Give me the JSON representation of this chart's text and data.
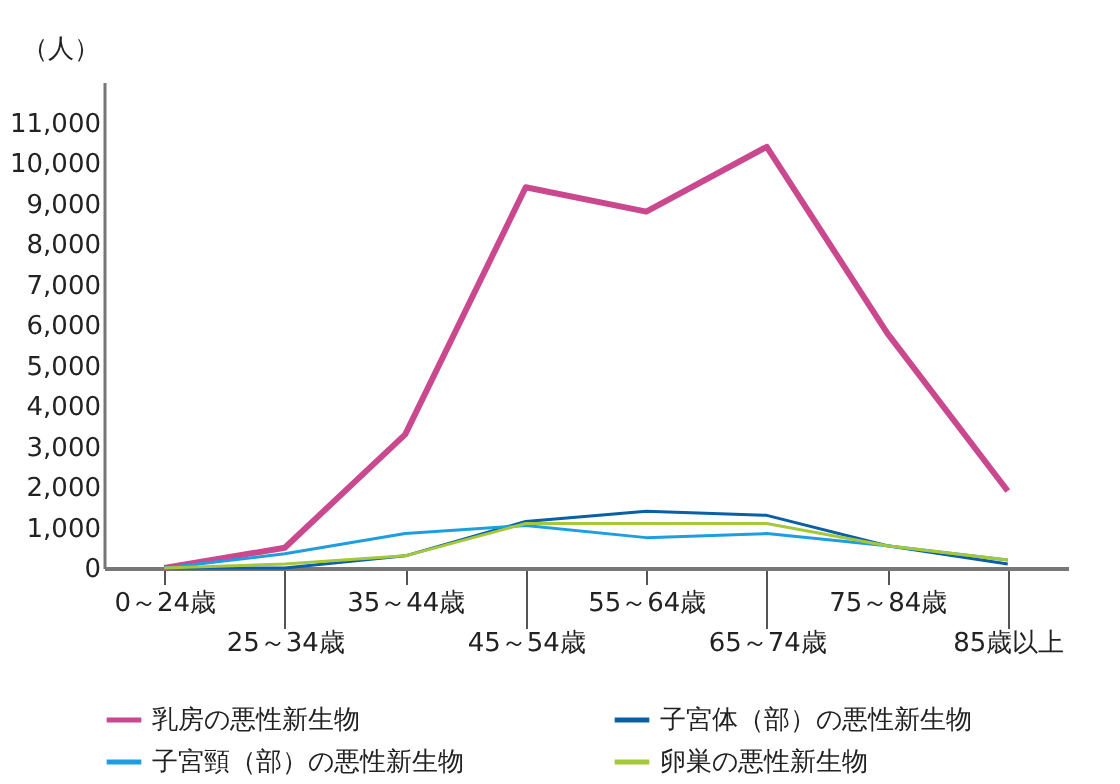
{
  "chart_data": {
    "type": "line",
    "ylabel": "（人）",
    "categories": [
      "0～24歳",
      "25～34歳",
      "35～44歳",
      "45～54歳",
      "55～64歳",
      "65～74歳",
      "75～84歳",
      "85歳以上"
    ],
    "series": [
      {
        "name": "乳房の悪性新生物",
        "color": "#c9488e",
        "values": [
          0,
          500,
          3300,
          9400,
          8800,
          10400,
          5800,
          1900
        ]
      },
      {
        "name": "子宮体（部）の悪性新生物",
        "color": "#0b5fa5",
        "values": [
          0,
          0,
          300,
          1150,
          1400,
          1300,
          550,
          100
        ]
      },
      {
        "name": "子宮頸（部）の悪性新生物",
        "color": "#1e9ee0",
        "values": [
          0,
          350,
          850,
          1050,
          750,
          850,
          550,
          200
        ]
      },
      {
        "name": "卵巣の悪性新生物",
        "color": "#a5c83a",
        "values": [
          0,
          100,
          300,
          1100,
          1100,
          1100,
          550,
          200
        ]
      }
    ],
    "ylim": [
      0,
      12000
    ],
    "yticks": [
      0,
      {
        "value": 1000,
        "label": "1,000"
      },
      {
        "value": 2000,
        "label": "2,000"
      },
      {
        "value": 3000,
        "label": "3,000"
      },
      {
        "value": 4000,
        "label": "4,000"
      },
      {
        "value": 5000,
        "label": "5,000"
      },
      {
        "value": 6000,
        "label": "6,000"
      },
      {
        "value": 7000,
        "label": "7,000"
      },
      {
        "value": 8000,
        "label": "8,000"
      },
      {
        "value": 9000,
        "label": "9,000"
      },
      {
        "value": 10000,
        "label": "10,000"
      },
      {
        "value": 11000,
        "label": "11,000"
      }
    ],
    "grid": false,
    "legend": "bottom",
    "marker": "none",
    "line_style": "solid"
  }
}
